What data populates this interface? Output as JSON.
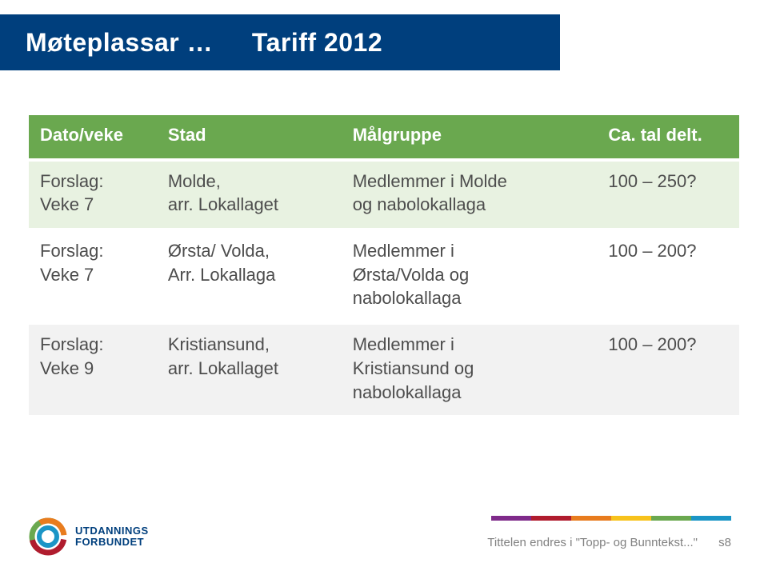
{
  "title": {
    "part1": "Møteplassar …",
    "part2": "Tariff  2012"
  },
  "table": {
    "headers": [
      "Dato/veke",
      "Stad",
      "Målgruppe",
      "Ca. tal delt."
    ],
    "rows": [
      {
        "c1": "Forslag:\nVeke 7",
        "c2": "Molde,\narr. Lokallaget",
        "c3": "Medlemmer i Molde\nog nabolokallaga",
        "c4": "100 – 250?"
      },
      {
        "c1": "Forslag:\nVeke 7",
        "c2": "Ørsta/ Volda,\nArr. Lokallaga",
        "c3": "Medlemmer i\nØrsta/Volda og\nnabolokallaga",
        "c4": "100 – 200?"
      },
      {
        "c1": "Forslag:\nVeke 9",
        "c2": "Kristiansund,\narr. Lokallaget",
        "c3": "Medlemmer i\nKristiansund og\nnabolokallaga",
        "c4": "100 – 200?"
      }
    ]
  },
  "colors": {
    "titlebar_bg": "#003f7d",
    "header_bg": "#6aa84f",
    "row_green_bg": "#e8f2e1",
    "row_grey_bg": "#f2f2f2",
    "bar": [
      "#7f2a8a",
      "#b01c2e",
      "#e87c1e",
      "#f7c21c",
      "#6aa84f",
      "#1b95c6"
    ]
  },
  "footer": {
    "text": "Tittelen endres i \"Topp- og Bunntekst...\"",
    "page": "s8",
    "logo_line1": "UTDANNINGS",
    "logo_line2": "FORBUNDET"
  }
}
